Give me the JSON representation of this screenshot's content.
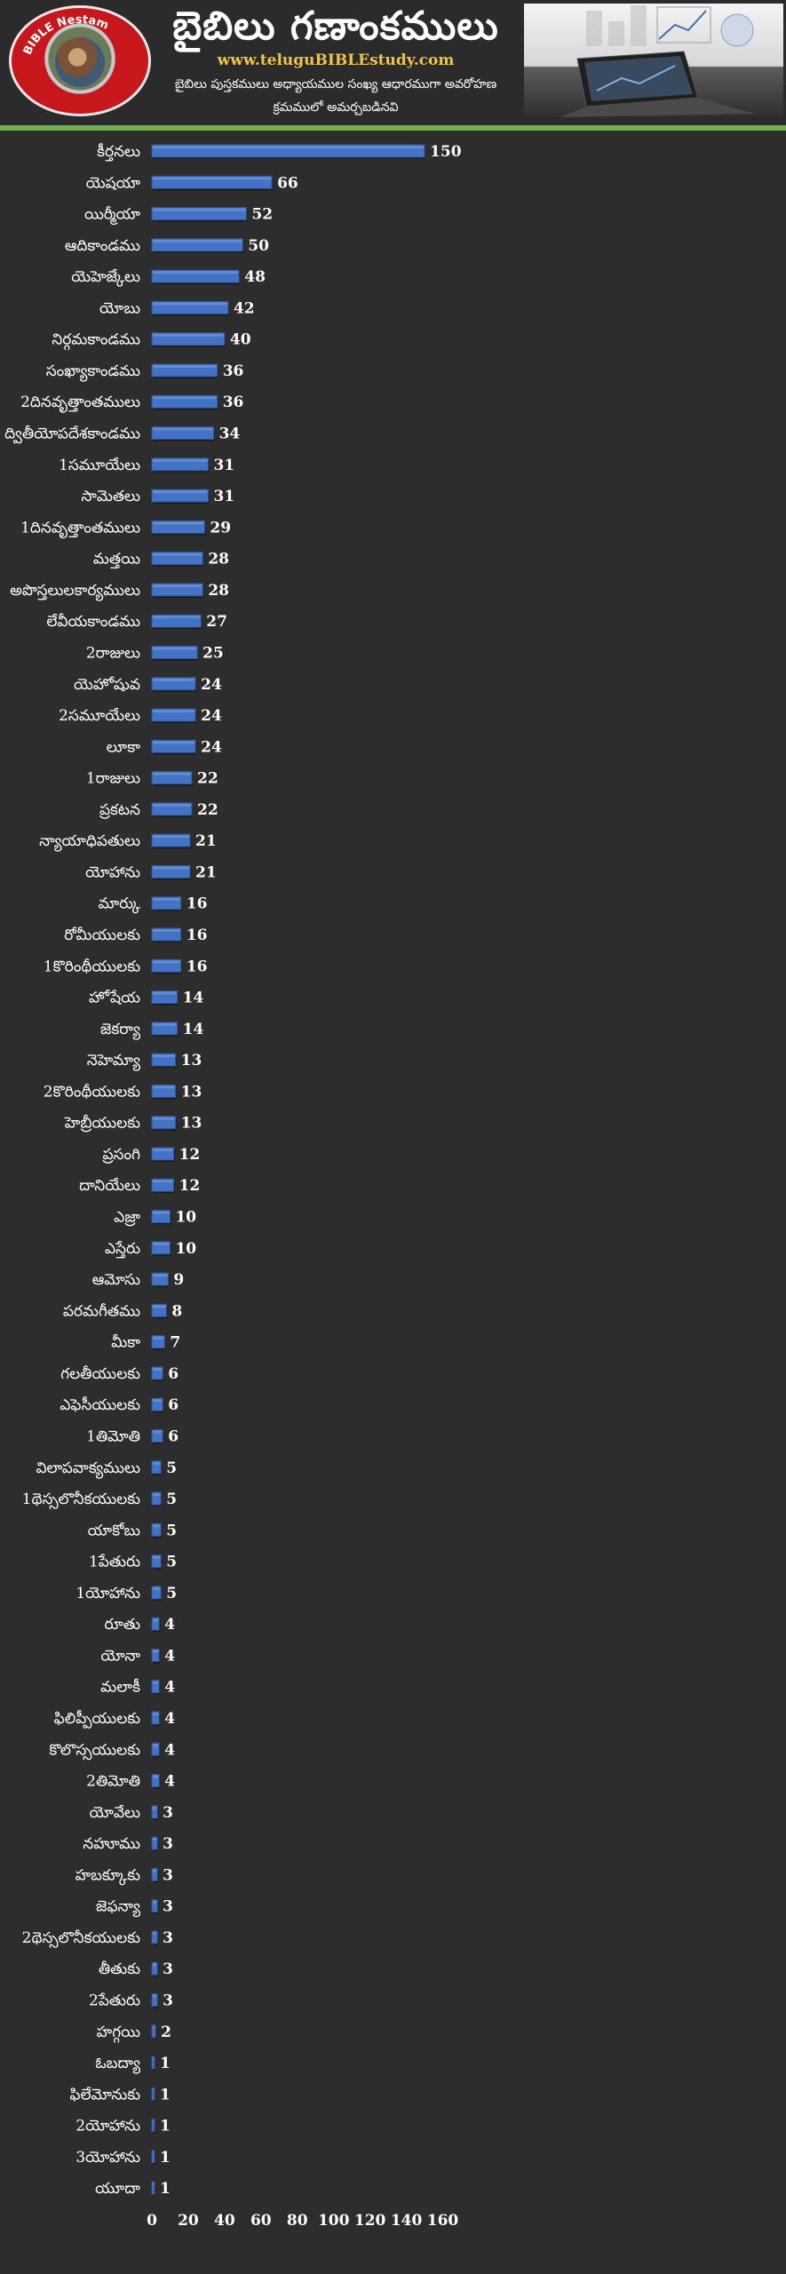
{
  "header": {
    "title": "బైబిలు గణాంకములు",
    "url": "www.teluguBIBLEstudy.com",
    "subtitle_line1": "బైబిలు పుస్తకములు అధ్యాయముల సంఖ్య ఆధారముగా అవరోహణ",
    "subtitle_line2": "క్రమములో అమర్చబడినవి",
    "logo_text": "BIBLE Nestam",
    "hero_image": "laptop-with-charts"
  },
  "colors": {
    "background": "#2d2d2d",
    "bar": "#4472c4",
    "divider": "#6fb04a",
    "label": "#ffffff",
    "value": "#ffffff",
    "url": "#f0c34a"
  },
  "chart_data": {
    "type": "bar",
    "orientation": "horizontal",
    "categories": [
      "కీర్తనలు",
      "యెషయా",
      "యిర్మీయా",
      "ఆదికాండము",
      "యెహెజ్కేలు",
      "యోబు",
      "నిర్గమకాండము",
      "సంఖ్యాకాండము",
      "2దినవృత్తాంతములు",
      "ద్వితీయోపదేశకాండము",
      "1సమూయేలు",
      "సామెతలు",
      "1దినవృత్తాంతములు",
      "మత్తయి",
      "అపొస్తలులకార్యములు",
      "లేవీయకాండము",
      "2రాజులు",
      "యెహోషువ",
      "2సమూయేలు",
      "లూకా",
      "1రాజులు",
      "ప్రకటన",
      "న్యాయాధిపతులు",
      "యోహాను",
      "మార్కు",
      "రోమీయులకు",
      "1కొరింథీయులకు",
      "హోషేయ",
      "జెకర్యా",
      "నెహెమ్యా",
      "2కొరింథీయులకు",
      "హెబ్రీయులకు",
      "ప్రసంగి",
      "దానియేలు",
      "ఎజ్రా",
      "ఎస్తేరు",
      "ఆమోసు",
      "పరమగీతము",
      "మీకా",
      "గలతీయులకు",
      "ఎఫెసీయులకు",
      "1తిమోతి",
      "విలాపవాక్యములు",
      "1థెస్సలొనీకయులకు",
      "యాకోబు",
      "1పేతురు",
      "1యోహాను",
      "రూతు",
      "యోనా",
      "మలాకీ",
      "ఫిలిప్పీయులకు",
      "కొలొస్సయులకు",
      "2తిమోతి",
      "యోవేలు",
      "నహూము",
      "హబక్కూకు",
      "జెఫన్యా",
      "2థెస్సలొనీకయులకు",
      "తీతుకు",
      "2పేతురు",
      "హగ్గయి",
      "ఓబద్యా",
      "ఫిలేమోనుకు",
      "2యోహాను",
      "3యోహాను",
      "యూదా"
    ],
    "values": [
      150,
      66,
      52,
      50,
      48,
      42,
      40,
      36,
      36,
      34,
      31,
      31,
      29,
      28,
      28,
      27,
      25,
      24,
      24,
      24,
      22,
      22,
      21,
      21,
      16,
      16,
      16,
      14,
      14,
      13,
      13,
      13,
      12,
      12,
      10,
      10,
      9,
      8,
      7,
      6,
      6,
      6,
      5,
      5,
      5,
      5,
      5,
      4,
      4,
      4,
      4,
      4,
      4,
      3,
      3,
      3,
      3,
      3,
      3,
      3,
      2,
      1,
      1,
      1,
      1,
      1
    ],
    "xlim": [
      0,
      160
    ],
    "xticks": [
      "0",
      "20",
      "40",
      "60",
      "80",
      "100",
      "120",
      "140",
      "160"
    ],
    "data_labels": true,
    "grid": false,
    "legend": "none"
  }
}
